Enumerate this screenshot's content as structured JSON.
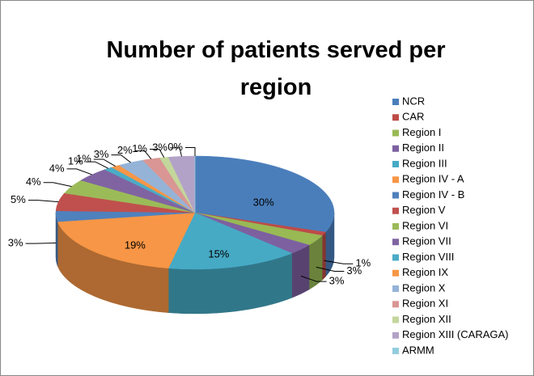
{
  "chart_data": {
    "type": "pie3d",
    "title": "Number of patients served per region",
    "categories": [
      "NCR",
      "CAR",
      "Region I",
      "Region II",
      "Region III",
      "Region IV - A",
      "Region IV - B",
      "Region V",
      "Region VI",
      "Region VII",
      "Region VIII",
      "Region IX",
      "Region X",
      "Region XI",
      "Region XII",
      "Region XIII (CARAGA)",
      "ARMM"
    ],
    "values": [
      30,
      1,
      3,
      3,
      15,
      19,
      3,
      5,
      4,
      4,
      1,
      1,
      3,
      2,
      1,
      3,
      0
    ],
    "value_labels": [
      "30%",
      "1%",
      "3%",
      "3%",
      "15%",
      "19%",
      "3%",
      "5%",
      "4%",
      "4%",
      "1%",
      "1%",
      "3%",
      "2%",
      "1%",
      "3%",
      "0%"
    ],
    "colors": [
      "#4a7ebb",
      "#be4b48",
      "#98b954",
      "#7d60a0",
      "#46aac5",
      "#f79646",
      "#4f81bd",
      "#c0504d",
      "#9bbb59",
      "#8064a2",
      "#4bacc6",
      "#f79646",
      "#95b3d7",
      "#d99694",
      "#c3d69b",
      "#b3a2c7",
      "#93cddd"
    ],
    "legend": "right"
  }
}
